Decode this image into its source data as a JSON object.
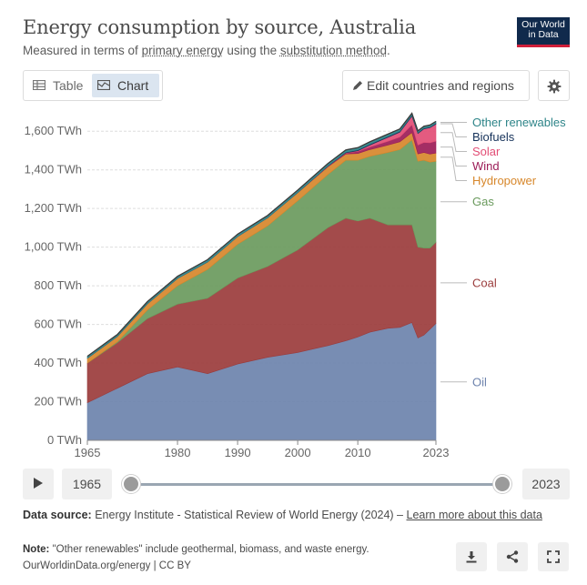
{
  "header": {
    "title": "Energy consumption by source, Australia",
    "subtitle_prefix": "Measured in terms of ",
    "subtitle_link1": "primary energy",
    "subtitle_mid": " using the ",
    "subtitle_link2": "substitution method",
    "subtitle_suffix": ".",
    "logo_line1": "Our World",
    "logo_line2": "in Data"
  },
  "tabs": {
    "table_label": "Table",
    "chart_label": "Chart",
    "active": "Chart"
  },
  "controls": {
    "edit_label": "Edit countries and regions"
  },
  "timeline": {
    "start_year": "1965",
    "end_year": "2023"
  },
  "footer": {
    "source_label": "Data source:",
    "source_text": " Energy Institute - Statistical Review of World Energy (2024) – ",
    "source_link": "Learn more about this data",
    "note_label": "Note:",
    "note_text": " \"Other renewables\" include geothermal, biomass, and waste energy.",
    "credit": "OurWorldinData.org/energy | CC BY"
  },
  "colors": {
    "oil": "#6d83ad",
    "coal": "#9b3c3c",
    "gas": "#6a9a5d",
    "hydropower": "#d7872b",
    "wind": "#9c1c57",
    "solar": "#e24d75",
    "biofuels": "#16325a",
    "other_renewables": "#2d8488"
  },
  "chart_data": {
    "type": "area",
    "stacked": true,
    "x": [
      1965,
      1970,
      1975,
      1980,
      1985,
      1990,
      1995,
      2000,
      2005,
      2008,
      2010,
      2012,
      2015,
      2017,
      2019,
      2020,
      2021,
      2022,
      2023
    ],
    "series": [
      {
        "name": "Oil",
        "key": "oil",
        "values": [
          195,
          270,
          345,
          380,
          345,
          395,
          430,
          455,
          490,
          515,
          535,
          560,
          580,
          585,
          610,
          530,
          545,
          575,
          605
        ]
      },
      {
        "name": "Coal",
        "key": "coal",
        "values": [
          205,
          235,
          285,
          325,
          390,
          445,
          470,
          530,
          610,
          635,
          600,
          590,
          535,
          530,
          505,
          470,
          450,
          420,
          420
        ]
      },
      {
        "name": "Gas",
        "key": "gas",
        "values": [
          0,
          5,
          45,
          95,
          150,
          175,
          210,
          255,
          275,
          300,
          315,
          320,
          375,
          390,
          440,
          445,
          455,
          445,
          420
        ]
      },
      {
        "name": "Hydropower",
        "key": "hydropower",
        "values": [
          25,
          28,
          32,
          38,
          38,
          40,
          42,
          42,
          40,
          32,
          35,
          35,
          38,
          40,
          38,
          38,
          40,
          42,
          42
        ]
      },
      {
        "name": "Wind",
        "key": "wind",
        "values": [
          0,
          0,
          0,
          0,
          0,
          0,
          0,
          0,
          2,
          4,
          10,
          13,
          20,
          25,
          40,
          45,
          52,
          58,
          62
        ]
      },
      {
        "name": "Solar",
        "key": "solar",
        "values": [
          0,
          0,
          0,
          0,
          0,
          0,
          0,
          0,
          1,
          2,
          4,
          10,
          20,
          25,
          45,
          60,
          70,
          78,
          88
        ]
      },
      {
        "name": "Biofuels",
        "key": "biofuels",
        "values": [
          0,
          0,
          0,
          0,
          0,
          0,
          0,
          1,
          2,
          3,
          4,
          5,
          5,
          5,
          5,
          4,
          4,
          4,
          4
        ]
      },
      {
        "name": "Other renewables",
        "key": "other_renewables",
        "values": [
          10,
          10,
          11,
          11,
          12,
          12,
          12,
          12,
          12,
          12,
          12,
          12,
          12,
          12,
          10,
          10,
          10,
          10,
          10
        ]
      }
    ],
    "yticks": [
      0,
      200,
      400,
      600,
      800,
      1000,
      1200,
      1400,
      1600
    ],
    "ytick_labels": [
      "0 TWh",
      "200 TWh",
      "400 TWh",
      "600 TWh",
      "800 TWh",
      "1,000 TWh",
      "1,200 TWh",
      "1,400 TWh",
      "1,600 TWh"
    ],
    "xticks": [
      1965,
      1980,
      1990,
      2000,
      2010,
      2023
    ],
    "xtick_labels": [
      "1965",
      "1980",
      "1990",
      "2000",
      "2010",
      "2023"
    ],
    "ylim": [
      0,
      1700
    ],
    "xlim": [
      1965,
      2023
    ],
    "grid": true,
    "legend": "right-side line labels"
  }
}
